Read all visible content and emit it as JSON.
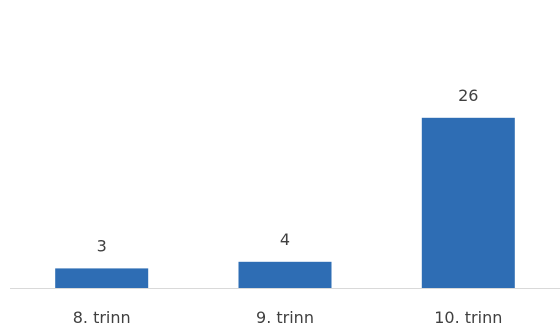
{
  "chart_data": {
    "type": "bar",
    "categories": [
      "8. trinn",
      "9. trinn",
      "10. trinn"
    ],
    "values": [
      3,
      4,
      26
    ],
    "data_labels": [
      "3",
      "4",
      "26"
    ],
    "ylim": [
      0,
      44
    ],
    "grid": false,
    "legend": "none",
    "colors": {
      "bar": "#2e6db4",
      "axis": "#d9d9d9",
      "text": "#404040"
    }
  }
}
